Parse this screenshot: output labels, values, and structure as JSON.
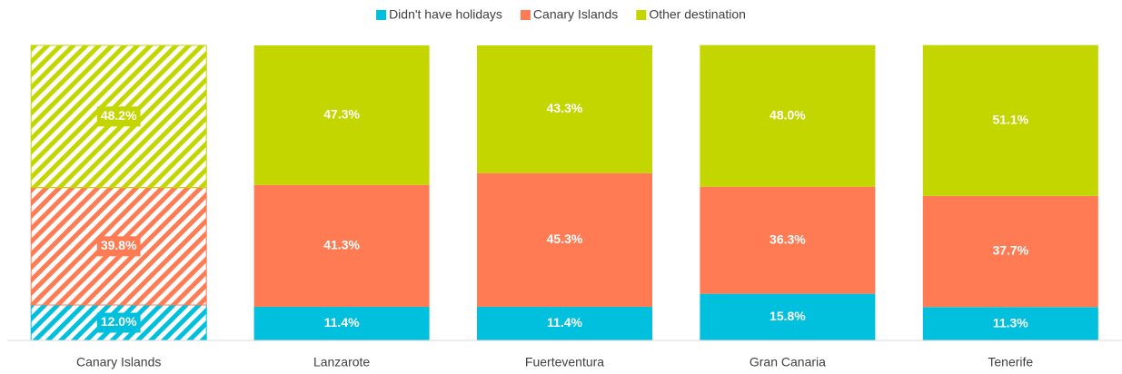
{
  "chart_data": {
    "type": "stacked_bar",
    "categories": [
      "Canary Islands",
      "Lanzarote",
      "Fuerteventura",
      "Gran Canaria",
      "Tenerife"
    ],
    "series": [
      {
        "name": "Didn't have holidays",
        "color": "#00c0de",
        "values": [
          12.0,
          11.4,
          11.4,
          15.8,
          11.3
        ],
        "value_labels": [
          "12.0%",
          "11.4%",
          "11.4%",
          "15.8%",
          "11.3%"
        ]
      },
      {
        "name": "Canary Islands",
        "color": "#ff7b54",
        "values": [
          39.8,
          41.3,
          45.3,
          36.3,
          37.7
        ],
        "value_labels": [
          "39.8%",
          "41.3%",
          "45.3%",
          "36.3%",
          "37.7%"
        ]
      },
      {
        "name": "Other destination",
        "color": "#c4d600",
        "values": [
          48.2,
          47.3,
          43.3,
          48.0,
          51.1
        ],
        "value_labels": [
          "48.2%",
          "47.3%",
          "43.3%",
          "48.0%",
          "51.1%"
        ]
      }
    ],
    "hatched": [
      true,
      false,
      false,
      false,
      false
    ],
    "ylim": [
      0,
      100
    ],
    "legend": "top"
  }
}
